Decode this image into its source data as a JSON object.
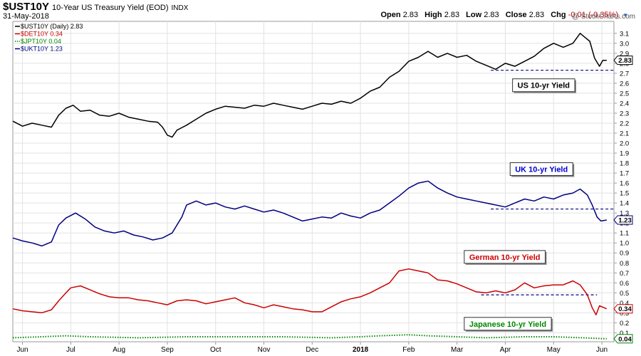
{
  "header": {
    "symbol": "$UST10Y",
    "description": "10-Year US Treasury Yield (EOD)",
    "exchange": "INDX",
    "date": "31-May-2018",
    "watermark": "@ StockCharts.com",
    "open_label": "Open",
    "open_value": "2.83",
    "high_label": "High",
    "high_value": "2.83",
    "low_label": "Low",
    "low_value": "2.83",
    "close_label": "Close",
    "close_value": "2.83",
    "chg_label": "Chg",
    "chg_value": "-0.01 (-0.35%)"
  },
  "chart_data": {
    "type": "line",
    "y_ticks": [
      0.1,
      0.2,
      0.3,
      0.4,
      0.5,
      0.6,
      0.7,
      0.8,
      0.9,
      1.0,
      1.1,
      1.2,
      1.3,
      1.4,
      1.5,
      1.6,
      1.7,
      1.8,
      1.9,
      2.0,
      2.1,
      2.2,
      2.3,
      2.4,
      2.5,
      2.6,
      2.7,
      2.8,
      2.9,
      3.0,
      3.1
    ],
    "ylim": [
      0.01,
      3.22
    ],
    "x_ticks": [
      "Jun",
      "Jul",
      "Aug",
      "Sep",
      "Oct",
      "Nov",
      "Dec",
      "2018",
      "Feb",
      "Mar",
      "Apr",
      "May",
      "Jun"
    ],
    "x_tick_pos": [
      0.6,
      1.6,
      2.6,
      3.6,
      4.6,
      5.6,
      6.6,
      7.6,
      8.6,
      9.6,
      10.6,
      11.6,
      12.6
    ],
    "xlim": [
      0.4,
      12.85
    ],
    "grid": true,
    "legend_position": "top-left",
    "series": [
      {
        "name": "$UST10Y (Daily) 2.83",
        "color": "#000000",
        "style": "solid",
        "last_label": "2.83",
        "points": [
          [
            0.4,
            2.22
          ],
          [
            0.6,
            2.17
          ],
          [
            0.8,
            2.2
          ],
          [
            1.0,
            2.18
          ],
          [
            1.2,
            2.16
          ],
          [
            1.35,
            2.28
          ],
          [
            1.5,
            2.35
          ],
          [
            1.65,
            2.38
          ],
          [
            1.8,
            2.32
          ],
          [
            2.0,
            2.33
          ],
          [
            2.2,
            2.28
          ],
          [
            2.4,
            2.27
          ],
          [
            2.6,
            2.3
          ],
          [
            2.8,
            2.26
          ],
          [
            3.0,
            2.24
          ],
          [
            3.2,
            2.22
          ],
          [
            3.4,
            2.21
          ],
          [
            3.5,
            2.16
          ],
          [
            3.6,
            2.08
          ],
          [
            3.7,
            2.06
          ],
          [
            3.8,
            2.13
          ],
          [
            4.0,
            2.18
          ],
          [
            4.2,
            2.24
          ],
          [
            4.4,
            2.3
          ],
          [
            4.6,
            2.34
          ],
          [
            4.8,
            2.37
          ],
          [
            5.0,
            2.36
          ],
          [
            5.2,
            2.35
          ],
          [
            5.4,
            2.38
          ],
          [
            5.6,
            2.37
          ],
          [
            5.8,
            2.4
          ],
          [
            6.0,
            2.38
          ],
          [
            6.2,
            2.36
          ],
          [
            6.4,
            2.34
          ],
          [
            6.6,
            2.37
          ],
          [
            6.8,
            2.4
          ],
          [
            7.0,
            2.39
          ],
          [
            7.2,
            2.42
          ],
          [
            7.4,
            2.4
          ],
          [
            7.6,
            2.45
          ],
          [
            7.8,
            2.52
          ],
          [
            8.0,
            2.56
          ],
          [
            8.2,
            2.66
          ],
          [
            8.4,
            2.72
          ],
          [
            8.6,
            2.82
          ],
          [
            8.8,
            2.86
          ],
          [
            9.0,
            2.92
          ],
          [
            9.2,
            2.86
          ],
          [
            9.4,
            2.9
          ],
          [
            9.6,
            2.86
          ],
          [
            9.8,
            2.88
          ],
          [
            10.0,
            2.82
          ],
          [
            10.2,
            2.78
          ],
          [
            10.4,
            2.74
          ],
          [
            10.6,
            2.8
          ],
          [
            10.8,
            2.77
          ],
          [
            11.0,
            2.82
          ],
          [
            11.2,
            2.87
          ],
          [
            11.4,
            2.95
          ],
          [
            11.6,
            3.0
          ],
          [
            11.8,
            2.96
          ],
          [
            12.0,
            3.0
          ],
          [
            12.15,
            3.1
          ],
          [
            12.25,
            3.06
          ],
          [
            12.35,
            3.02
          ],
          [
            12.45,
            2.85
          ],
          [
            12.55,
            2.77
          ],
          [
            12.62,
            2.83
          ],
          [
            12.7,
            2.83
          ]
        ]
      },
      {
        "name": "$DET10Y 0.34",
        "color": "#cc0000",
        "style": "solid",
        "last_label": "0.34",
        "points": [
          [
            0.4,
            0.34
          ],
          [
            0.6,
            0.32
          ],
          [
            0.8,
            0.31
          ],
          [
            1.0,
            0.3
          ],
          [
            1.2,
            0.33
          ],
          [
            1.35,
            0.42
          ],
          [
            1.5,
            0.5
          ],
          [
            1.6,
            0.55
          ],
          [
            1.8,
            0.57
          ],
          [
            2.0,
            0.53
          ],
          [
            2.2,
            0.49
          ],
          [
            2.4,
            0.46
          ],
          [
            2.6,
            0.45
          ],
          [
            2.8,
            0.45
          ],
          [
            3.0,
            0.43
          ],
          [
            3.2,
            0.42
          ],
          [
            3.4,
            0.4
          ],
          [
            3.6,
            0.38
          ],
          [
            3.8,
            0.42
          ],
          [
            4.0,
            0.43
          ],
          [
            4.2,
            0.42
          ],
          [
            4.4,
            0.39
          ],
          [
            4.6,
            0.41
          ],
          [
            4.8,
            0.43
          ],
          [
            5.0,
            0.45
          ],
          [
            5.2,
            0.4
          ],
          [
            5.4,
            0.38
          ],
          [
            5.6,
            0.35
          ],
          [
            5.8,
            0.38
          ],
          [
            6.0,
            0.36
          ],
          [
            6.2,
            0.34
          ],
          [
            6.4,
            0.33
          ],
          [
            6.6,
            0.31
          ],
          [
            6.8,
            0.31
          ],
          [
            7.0,
            0.36
          ],
          [
            7.2,
            0.41
          ],
          [
            7.4,
            0.44
          ],
          [
            7.6,
            0.46
          ],
          [
            7.8,
            0.5
          ],
          [
            8.0,
            0.55
          ],
          [
            8.2,
            0.6
          ],
          [
            8.4,
            0.72
          ],
          [
            8.6,
            0.74
          ],
          [
            8.8,
            0.72
          ],
          [
            9.0,
            0.7
          ],
          [
            9.2,
            0.63
          ],
          [
            9.4,
            0.62
          ],
          [
            9.6,
            0.59
          ],
          [
            9.8,
            0.55
          ],
          [
            10.0,
            0.51
          ],
          [
            10.2,
            0.5
          ],
          [
            10.4,
            0.52
          ],
          [
            10.6,
            0.5
          ],
          [
            10.8,
            0.53
          ],
          [
            11.0,
            0.6
          ],
          [
            11.2,
            0.55
          ],
          [
            11.4,
            0.57
          ],
          [
            11.6,
            0.58
          ],
          [
            11.8,
            0.58
          ],
          [
            12.0,
            0.62
          ],
          [
            12.15,
            0.58
          ],
          [
            12.3,
            0.48
          ],
          [
            12.4,
            0.35
          ],
          [
            12.48,
            0.28
          ],
          [
            12.55,
            0.37
          ],
          [
            12.7,
            0.34
          ]
        ]
      },
      {
        "name": "$JPT10Y 0.04",
        "color": "#008800",
        "style": "dotted",
        "last_label": "0.04",
        "points": [
          [
            0.4,
            0.05
          ],
          [
            1.0,
            0.06
          ],
          [
            1.5,
            0.07
          ],
          [
            2.0,
            0.06
          ],
          [
            3.0,
            0.05
          ],
          [
            4.0,
            0.06
          ],
          [
            5.0,
            0.06
          ],
          [
            6.0,
            0.06
          ],
          [
            7.0,
            0.05
          ],
          [
            7.6,
            0.06
          ],
          [
            8.0,
            0.07
          ],
          [
            8.6,
            0.08
          ],
          [
            9.0,
            0.07
          ],
          [
            9.6,
            0.06
          ],
          [
            10.2,
            0.05
          ],
          [
            11.0,
            0.06
          ],
          [
            11.6,
            0.06
          ],
          [
            12.2,
            0.05
          ],
          [
            12.7,
            0.04
          ]
        ]
      },
      {
        "name": "$UKT10Y 1.23",
        "color": "#000080",
        "style": "solid",
        "last_label": "1.23",
        "points": [
          [
            0.4,
            1.05
          ],
          [
            0.6,
            1.02
          ],
          [
            0.8,
            1.0
          ],
          [
            1.0,
            0.97
          ],
          [
            1.2,
            1.01
          ],
          [
            1.35,
            1.18
          ],
          [
            1.5,
            1.25
          ],
          [
            1.7,
            1.3
          ],
          [
            1.9,
            1.24
          ],
          [
            2.1,
            1.16
          ],
          [
            2.3,
            1.12
          ],
          [
            2.5,
            1.1
          ],
          [
            2.7,
            1.12
          ],
          [
            2.9,
            1.08
          ],
          [
            3.1,
            1.06
          ],
          [
            3.3,
            1.03
          ],
          [
            3.5,
            1.05
          ],
          [
            3.7,
            1.1
          ],
          [
            3.9,
            1.26
          ],
          [
            4.0,
            1.38
          ],
          [
            4.2,
            1.42
          ],
          [
            4.4,
            1.38
          ],
          [
            4.6,
            1.4
          ],
          [
            4.8,
            1.36
          ],
          [
            5.0,
            1.34
          ],
          [
            5.2,
            1.37
          ],
          [
            5.4,
            1.34
          ],
          [
            5.6,
            1.31
          ],
          [
            5.8,
            1.33
          ],
          [
            6.0,
            1.3
          ],
          [
            6.2,
            1.26
          ],
          [
            6.4,
            1.22
          ],
          [
            6.6,
            1.24
          ],
          [
            6.8,
            1.26
          ],
          [
            7.0,
            1.25
          ],
          [
            7.2,
            1.3
          ],
          [
            7.4,
            1.27
          ],
          [
            7.6,
            1.25
          ],
          [
            7.8,
            1.3
          ],
          [
            8.0,
            1.33
          ],
          [
            8.2,
            1.4
          ],
          [
            8.4,
            1.47
          ],
          [
            8.6,
            1.55
          ],
          [
            8.8,
            1.6
          ],
          [
            9.0,
            1.62
          ],
          [
            9.2,
            1.55
          ],
          [
            9.4,
            1.5
          ],
          [
            9.6,
            1.46
          ],
          [
            9.8,
            1.44
          ],
          [
            10.0,
            1.42
          ],
          [
            10.2,
            1.4
          ],
          [
            10.4,
            1.38
          ],
          [
            10.6,
            1.36
          ],
          [
            10.8,
            1.4
          ],
          [
            11.0,
            1.44
          ],
          [
            11.2,
            1.42
          ],
          [
            11.4,
            1.46
          ],
          [
            11.6,
            1.44
          ],
          [
            11.8,
            1.48
          ],
          [
            12.0,
            1.5
          ],
          [
            12.15,
            1.54
          ],
          [
            12.3,
            1.48
          ],
          [
            12.4,
            1.38
          ],
          [
            12.5,
            1.26
          ],
          [
            12.58,
            1.22
          ],
          [
            12.7,
            1.23
          ]
        ]
      }
    ],
    "reference_lines": [
      {
        "y": 2.73,
        "x_start": 10.3,
        "x_end": 12.85,
        "color": "#000080"
      },
      {
        "y": 1.34,
        "x_start": 10.3,
        "x_end": 12.85,
        "color": "#000080"
      },
      {
        "y": 0.48,
        "x_start": 10.1,
        "x_end": 12.5,
        "color": "#000080"
      }
    ],
    "annotations": [
      {
        "text": "US 10-yr Yield",
        "color": "#000000",
        "x": 10.75,
        "y": 2.58
      },
      {
        "text": "UK 10-yr Yield",
        "color": "#0000cc",
        "x": 10.7,
        "y": 1.74
      },
      {
        "text": "German 10-yr Yield",
        "color": "#cc0000",
        "x": 9.75,
        "y": 0.86
      },
      {
        "text": "Japanese 10-yr Yield",
        "color": "#008800",
        "x": 9.75,
        "y": 0.19
      }
    ]
  }
}
